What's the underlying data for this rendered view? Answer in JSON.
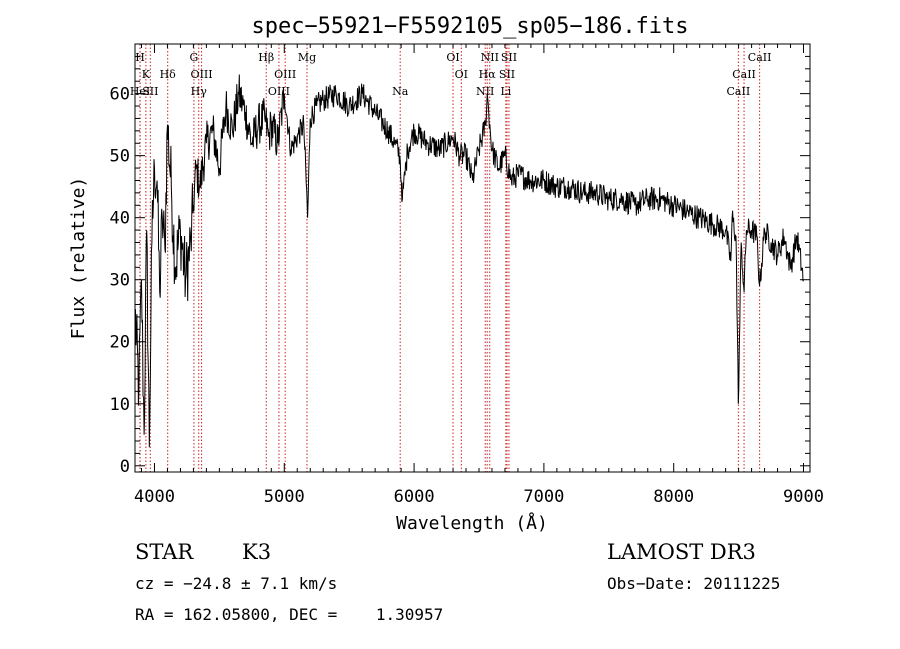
{
  "chart_data": {
    "type": "line",
    "title": "spec−55921−F5592105_sp05−186.fits",
    "xlabel": "Wavelength (Å)",
    "ylabel": "Flux (relative)",
    "xlim": [
      3850,
      9050
    ],
    "ylim": [
      -1,
      68
    ],
    "x_ticks": [
      {
        "value": 4000,
        "label": "4000"
      },
      {
        "value": 5000,
        "label": "5000"
      },
      {
        "value": 6000,
        "label": "6000"
      },
      {
        "value": 7000,
        "label": "7000"
      },
      {
        "value": 8000,
        "label": "8000"
      },
      {
        "value": 9000,
        "label": "9000"
      }
    ],
    "y_ticks": [
      {
        "value": 0,
        "label": "0"
      },
      {
        "value": 10,
        "label": "10"
      },
      {
        "value": 20,
        "label": "20"
      },
      {
        "value": 30,
        "label": "30"
      },
      {
        "value": 40,
        "label": "40"
      },
      {
        "value": 50,
        "label": "50"
      },
      {
        "value": 60,
        "label": "60"
      }
    ],
    "line_color": "#000000",
    "marker_color": "#cc2222",
    "series": [
      {
        "name": "flux",
        "x": [
          3850,
          3880,
          3900,
          3920,
          3940,
          3960,
          3980,
          4000,
          4020,
          4040,
          4060,
          4080,
          4100,
          4130,
          4160,
          4200,
          4240,
          4280,
          4300,
          4320,
          4350,
          4400,
          4450,
          4500,
          4550,
          4600,
          4650,
          4700,
          4750,
          4800,
          4850,
          4880,
          4900,
          4950,
          5000,
          5050,
          5100,
          5150,
          5180,
          5200,
          5250,
          5300,
          5400,
          5500,
          5600,
          5700,
          5800,
          5850,
          5890,
          5910,
          5950,
          6000,
          6100,
          6200,
          6300,
          6350,
          6400,
          6450,
          6500,
          6550,
          6563,
          6600,
          6650,
          6700,
          6750,
          6800,
          6900,
          7000,
          7100,
          7200,
          7300,
          7400,
          7500,
          7600,
          7700,
          7800,
          7900,
          8000,
          8100,
          8200,
          8300,
          8400,
          8440,
          8450,
          8480,
          8498,
          8520,
          8542,
          8560,
          8600,
          8640,
          8662,
          8700,
          8750,
          8800,
          8850,
          8900,
          8950,
          9000
        ],
        "values": [
          25,
          12,
          30,
          5,
          38,
          3,
          36,
          48,
          46,
          28,
          40,
          35,
          55,
          45,
          32,
          38,
          30,
          36,
          42,
          48,
          45,
          52,
          54,
          48,
          58,
          54,
          60,
          57,
          52,
          55,
          56,
          53,
          55,
          52,
          60,
          51,
          53,
          55,
          40,
          56,
          58,
          59,
          60,
          58,
          60,
          57,
          54,
          52,
          50,
          43,
          51,
          54,
          52,
          51,
          53,
          50,
          50,
          46,
          51,
          55,
          60,
          51,
          48,
          50,
          46,
          47,
          46,
          46,
          45,
          45,
          44,
          44,
          43,
          43,
          42,
          43,
          43,
          42,
          41,
          40,
          39,
          38,
          33,
          40,
          37,
          10,
          36,
          28,
          38,
          38,
          37,
          29,
          38,
          36,
          34,
          37,
          32,
          37,
          30
        ]
      }
    ],
    "line_markers": [
      {
        "wavelength": 3889,
        "label": "H",
        "row": 1
      },
      {
        "wavelength": 3934,
        "label": "K",
        "row": 2
      },
      {
        "wavelength": 3889,
        "label": "HeI",
        "row": 3
      },
      {
        "wavelength": 3968,
        "label": "SII",
        "row": 3
      },
      {
        "wavelength": 4102,
        "label": "Hδ",
        "row": 2
      },
      {
        "wavelength": 4304,
        "label": "G",
        "row": 1
      },
      {
        "wavelength": 4363,
        "label": "OIII",
        "row": 2
      },
      {
        "wavelength": 4341,
        "label": "Hγ",
        "row": 3
      },
      {
        "wavelength": 4861,
        "label": "Hβ",
        "row": 1
      },
      {
        "wavelength": 4959,
        "label": "OIII",
        "row": 3
      },
      {
        "wavelength": 5007,
        "label": "OIII",
        "row": 2
      },
      {
        "wavelength": 5175,
        "label": "Mg",
        "row": 1
      },
      {
        "wavelength": 5893,
        "label": "Na",
        "row": 3
      },
      {
        "wavelength": 6300,
        "label": "OI",
        "row": 1
      },
      {
        "wavelength": 6364,
        "label": "OI",
        "row": 2
      },
      {
        "wavelength": 6548,
        "label": "NII",
        "row": 3
      },
      {
        "wavelength": 6563,
        "label": "Hα",
        "row": 2
      },
      {
        "wavelength": 6583,
        "label": "NII",
        "row": 1
      },
      {
        "wavelength": 6707,
        "label": "Li",
        "row": 3
      },
      {
        "wavelength": 6716,
        "label": "SII",
        "row": 2
      },
      {
        "wavelength": 6731,
        "label": "SII",
        "row": 1
      },
      {
        "wavelength": 8498,
        "label": "CaII",
        "row": 3
      },
      {
        "wavelength": 8542,
        "label": "CaII",
        "row": 2
      },
      {
        "wavelength": 8662,
        "label": "CaII",
        "row": 1
      }
    ]
  },
  "info": {
    "object_class": "STAR",
    "subclass": "K3",
    "survey": "LAMOST DR3",
    "redshift": "cz = −24.8 ± 7.1 km/s",
    "obs_date": "Obs−Date: 20111225",
    "coords": "RA = 162.05800, DEC =    1.30957"
  }
}
